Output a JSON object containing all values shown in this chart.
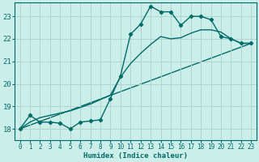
{
  "background_color": "#cceee8",
  "grid_color": "#b0d4ce",
  "line_color": "#006b6b",
  "xlabel": "Humidex (Indice chaleur)",
  "xlim": [
    -0.5,
    23.5
  ],
  "ylim": [
    17.5,
    23.6
  ],
  "yticks": [
    18,
    19,
    20,
    21,
    22,
    23
  ],
  "xticks": [
    0,
    1,
    2,
    3,
    4,
    5,
    6,
    7,
    8,
    9,
    10,
    11,
    12,
    13,
    14,
    15,
    16,
    17,
    18,
    19,
    20,
    21,
    22,
    23
  ],
  "curve1_x": [
    0,
    1,
    2,
    3,
    4,
    5,
    6,
    7,
    8,
    9,
    10,
    11,
    12,
    13,
    14,
    15,
    16,
    17,
    18,
    19,
    20,
    21,
    22,
    23
  ],
  "curve1_y": [
    18.0,
    18.6,
    18.3,
    18.3,
    18.25,
    18.0,
    18.3,
    18.35,
    18.4,
    19.35,
    20.35,
    22.2,
    22.65,
    23.45,
    23.2,
    23.2,
    22.6,
    23.0,
    23.0,
    22.85,
    22.1,
    22.0,
    21.8,
    21.8
  ],
  "curve2_x": [
    0,
    1,
    2,
    3,
    4,
    5,
    6,
    7,
    8,
    9,
    10,
    11,
    12,
    13,
    14,
    15,
    16,
    17,
    18,
    19,
    20,
    21,
    22,
    23
  ],
  "curve2_y": [
    18.0,
    18.3,
    18.5,
    18.6,
    18.7,
    18.8,
    18.95,
    19.1,
    19.3,
    19.5,
    20.3,
    20.9,
    21.35,
    21.75,
    22.1,
    22.0,
    22.05,
    22.25,
    22.4,
    22.4,
    22.3,
    22.0,
    21.8,
    21.8
  ],
  "curve3_x": [
    0,
    23
  ],
  "curve3_y": [
    18.0,
    21.8
  ]
}
